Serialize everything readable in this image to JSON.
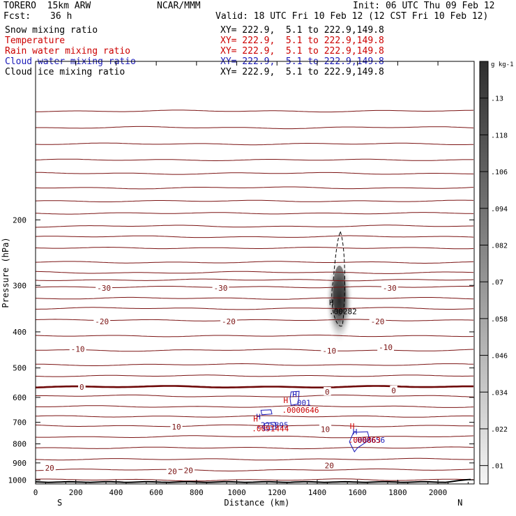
{
  "header": {
    "model": "TORERO  15km ARW",
    "org": "NCAR/MMM",
    "init": "Init: 06 UTC Thu 09 Feb 12",
    "fcst_label": "Fcst:",
    "fcst_value": "36 h",
    "valid": "Valid: 18 UTC Fri 10 Feb 12 (12 CST Fri 10 Feb 12)"
  },
  "fields": [
    {
      "name": "Snow mixing ratio",
      "xy": "XY= 222.9,  5.1 to 222.9,149.8",
      "color": "#000000"
    },
    {
      "name": "Temperature",
      "xy": "XY= 222.9,  5.1 to 222.9,149.8",
      "color": "#cc0000"
    },
    {
      "name": "Rain water mixing ratio",
      "xy": "XY= 222.9,  5.1 to 222.9,149.8",
      "color": "#cc0000"
    },
    {
      "name": "Cloud water mixing ratio",
      "xy": "XY= 222.9,  5.1 to 222.9,149.8",
      "color": "#1a1ab8"
    },
    {
      "name": "Cloud ice mixing ratio",
      "xy": "XY= 222.9,  5.1 to 222.9,149.8",
      "color": "#000000"
    }
  ],
  "colors": {
    "temperature": "#7a1212",
    "freezing": "#6e0808",
    "rain": "#cc0000",
    "cloud_water": "#1a1ab8",
    "ice": "#000000",
    "terrain": "#000000"
  },
  "chart_data": {
    "type": "cross-section",
    "xlabel": "Distance (km)",
    "ylabel": "Pressure (hPa)",
    "xlim": [
      0,
      2180
    ],
    "ylim": [
      1025,
      75
    ],
    "y_scale": "log",
    "x_ticks": [
      0,
      200,
      400,
      600,
      800,
      1000,
      1200,
      1400,
      1600,
      1800,
      2000
    ],
    "y_ticks": [
      200,
      300,
      400,
      500,
      600,
      700,
      800,
      900,
      1000
    ],
    "x_end_labels": {
      "left": "S",
      "right": "N"
    },
    "temperature_isotherms": {
      "label_values": [
        "-30",
        "-30",
        "-30",
        "-20",
        "-20",
        "-20",
        "-10",
        "-10",
        "-10",
        "0",
        "0",
        "0",
        "10",
        "10",
        "20",
        "20",
        "20",
        "20"
      ],
      "label_points": [
        [
          340,
          305
        ],
        [
          920,
          305
        ],
        [
          1760,
          305
        ],
        [
          330,
          375
        ],
        [
          960,
          375
        ],
        [
          1700,
          375
        ],
        [
          210,
          445
        ],
        [
          1460,
          450
        ],
        [
          1740,
          440
        ],
        [
          230,
          563
        ],
        [
          1450,
          580
        ],
        [
          1780,
          575
        ],
        [
          700,
          720
        ],
        [
          1440,
          730
        ],
        [
          70,
          928
        ],
        [
          680,
          948
        ],
        [
          760,
          943
        ],
        [
          1460,
          914
        ]
      ],
      "contour_levels_hPa": [
        102,
        113,
        125,
        138,
        150,
        164,
        178,
        192,
        208,
        222,
        238,
        260,
        277,
        290,
        303,
        325,
        346,
        372,
        410,
        448,
        490,
        525,
        562,
        595,
        635,
        675,
        715,
        765,
        820,
        880,
        940,
        1000
      ]
    },
    "snow_shading": {
      "unit": "g kg-1",
      "colorbar_ticks": [
        ".13",
        ".118",
        ".106",
        ".094",
        ".082",
        ".07",
        ".058",
        ".046",
        ".034",
        ".022",
        ".01"
      ],
      "max_label": "H",
      "max_value": ".00282",
      "max_point": [
        1480,
        345
      ]
    },
    "cloud_ice_maximum": {
      "label": "H",
      "value": ".00282"
    },
    "cloud_water_maxima": [
      {
        "label": "H",
        "value": ".001",
        "point": [
          1290,
          615
        ]
      },
      {
        "label": "H",
        "value": ".225895",
        "point": [
          1110,
          705
        ]
      },
      {
        "label": "H",
        "value": ".000656",
        "point": [
          1590,
          775
        ]
      }
    ],
    "rain_maxima": [
      {
        "label": "H",
        "value": ".0000646",
        "point": [
          1260,
          660
        ]
      },
      {
        "label": "H",
        "value": ".0091444",
        "point": [
          1110,
          740
        ]
      },
      {
        "label": "H",
        "value": ".000863",
        "point": [
          1590,
          775
        ]
      }
    ],
    "terrain_hPa": 1013
  }
}
